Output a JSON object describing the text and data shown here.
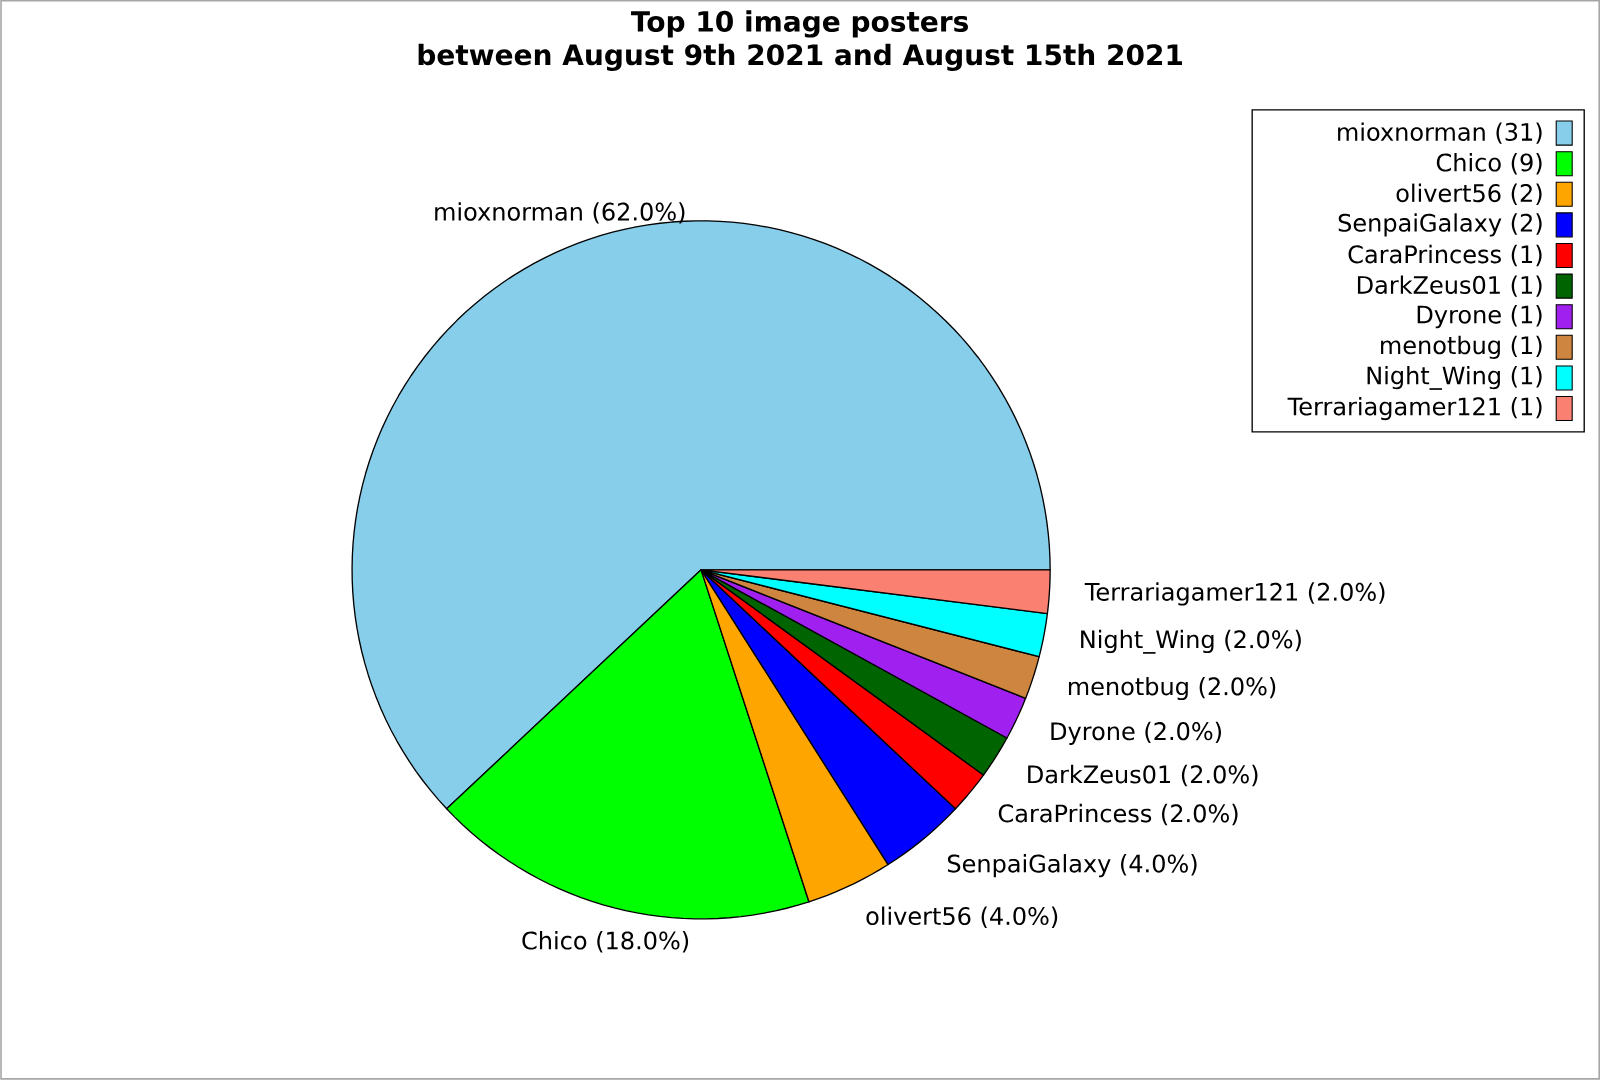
{
  "chart_data": {
    "type": "pie",
    "title": "Top 10 image posters\nbetween August 9th 2021 and August 15th 2021",
    "categories": [
      "mioxnorman (31)",
      "Chico (9)",
      "olivert56 (2)",
      "SenpaiGalaxy (2)",
      "CaraPrincess (1)",
      "DarkZeus01 (1)",
      "Dyrone (1)",
      "menotbug (1)",
      "Night_Wing (1)",
      "Terrariagamer121 (1)"
    ],
    "values": [
      62,
      18,
      4,
      4,
      2,
      2,
      2,
      2,
      2,
      2
    ],
    "value_labels": [
      "mioxnorman (62.0%)",
      "Chico (18.0%)",
      "olivert56 (4.0%)",
      "SenpaiGalaxy (4.0%)",
      "CaraPrincess (2.0%)",
      "DarkZeus01 (2.0%)",
      "Dyrone (2.0%)",
      "menotbug (2.0%)",
      "Night_Wing (2.0%)",
      "Terrariagamer121 (2.0%)"
    ],
    "colors": [
      "#87ceeb",
      "#00ff00",
      "#ffa500",
      "#0000ff",
      "#ff0000",
      "#006400",
      "#a020f0",
      "#cd853f",
      "#00ffff",
      "#fa8072"
    ],
    "legend": "top right"
  }
}
